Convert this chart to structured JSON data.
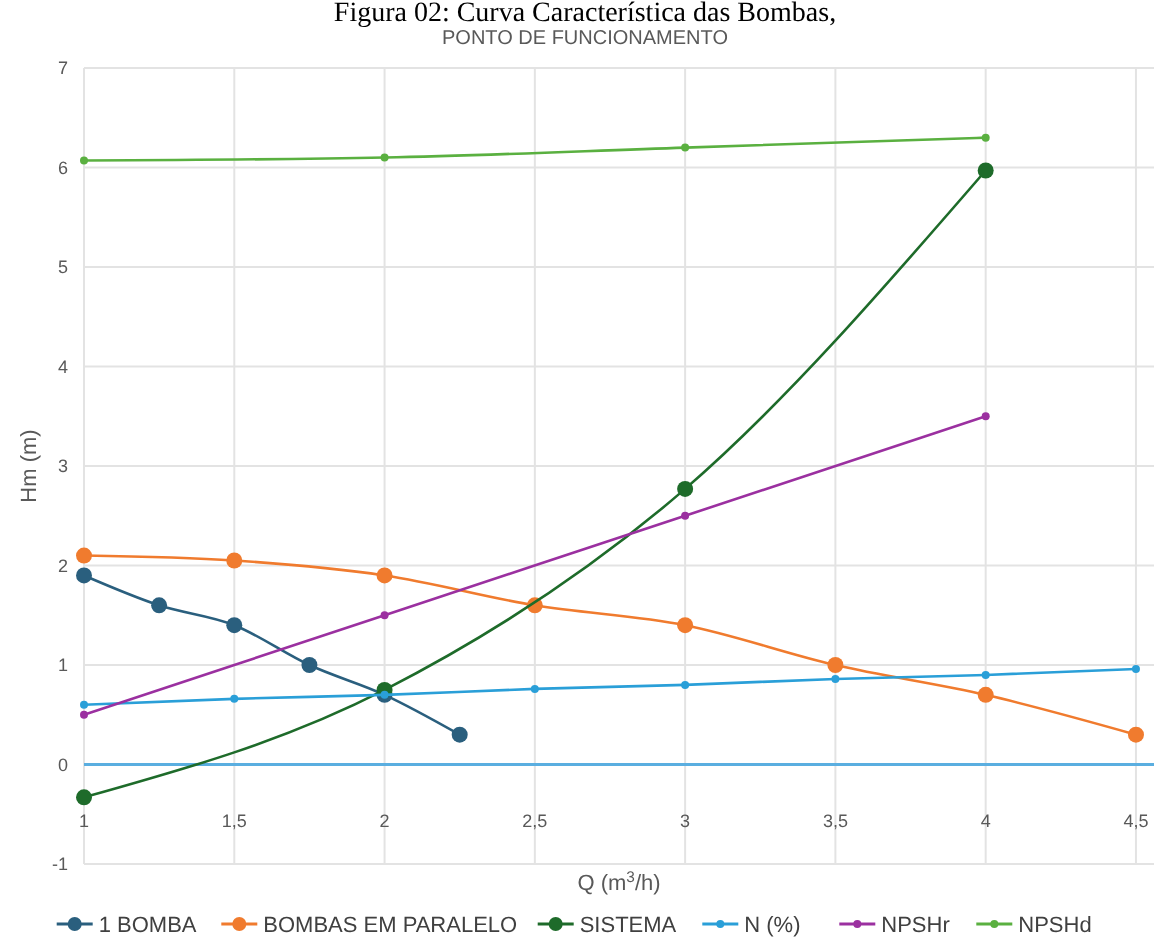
{
  "chart_data": {
    "type": "line",
    "title": "PONTO DE FUNCIONAMENTO",
    "xlabel": "Q (m$^{3}$/h)",
    "ylabel": "Hm (m)",
    "annotations": [
      "Figura 02: Curva Característica das Bombas,"
    ],
    "xlim": [
      1,
      4.56
    ],
    "xticks": [
      1,
      {
        "value": 1.5,
        "label": "1,5"
      },
      2,
      {
        "value": 2.5,
        "label": "2,5"
      },
      3,
      {
        "value": 3.5,
        "label": "3,5"
      },
      4,
      {
        "value": 4.5,
        "label": "4,5"
      }
    ],
    "ylim": [
      -1,
      7
    ],
    "yticks": [
      -1,
      0,
      1,
      2,
      3,
      4,
      5,
      6,
      7
    ],
    "grid": true,
    "legend": "bottom",
    "marker": "circle",
    "line_style": "solid",
    "ref_lines": [
      {
        "axis": "y",
        "value": 0,
        "color": "#5aaee0"
      }
    ],
    "series": [
      {
        "name": "1 BOMBA",
        "color": "#2a5f7e",
        "x": [
          1,
          1.25,
          1.5,
          1.75,
          2,
          2.25
        ],
        "values": [
          1.9,
          1.6,
          1.4,
          1.0,
          0.7,
          0.3
        ]
      },
      {
        "name": "BOMBAS EM PARALELO",
        "color": "#f07b2e",
        "x": [
          1,
          1.5,
          2,
          2.5,
          3,
          3.5,
          4,
          4.5
        ],
        "values": [
          2.1,
          2.05,
          1.9,
          1.6,
          1.4,
          1.0,
          0.7,
          0.3
        ]
      },
      {
        "name": "SISTEMA",
        "color": "#1e6b2a",
        "x": [
          1,
          2,
          3,
          4
        ],
        "values": [
          -0.33,
          0.75,
          2.77,
          5.97
        ]
      },
      {
        "name": "N (%)",
        "color": "#2a9fd8",
        "x": [
          1,
          1.5,
          2,
          2.5,
          3,
          3.5,
          4,
          4.5
        ],
        "values": [
          0.6,
          0.66,
          0.7,
          0.76,
          0.8,
          0.86,
          0.9,
          0.96
        ]
      },
      {
        "name": "NPSHr",
        "color": "#9b30a0",
        "x": [
          1,
          2,
          3,
          4
        ],
        "values": [
          0.5,
          1.5,
          2.5,
          3.5
        ]
      },
      {
        "name": "NPSHd",
        "color": "#5ab040",
        "x": [
          1,
          2,
          3,
          4
        ],
        "values": [
          6.07,
          6.1,
          6.2,
          6.3
        ]
      }
    ]
  }
}
